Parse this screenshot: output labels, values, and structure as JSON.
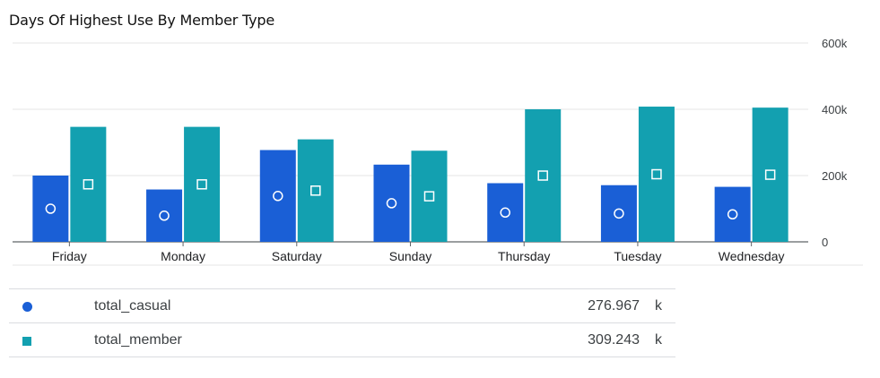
{
  "chart_data": {
    "type": "bar",
    "title": "Days Of Highest Use By Member Type",
    "xlabel": "",
    "ylabel": "",
    "categories": [
      "Friday",
      "Monday",
      "Saturday",
      "Sunday",
      "Thursday",
      "Tuesday",
      "Wednesday"
    ],
    "series": [
      {
        "name": "total_casual",
        "color": "#1a5fd6",
        "marker": "circle",
        "values": [
          200000,
          158000,
          276967,
          233000,
          177000,
          171000,
          166000
        ]
      },
      {
        "name": "total_member",
        "color": "#13a0b0",
        "marker": "square",
        "values": [
          347000,
          347000,
          309243,
          275000,
          400000,
          408000,
          405000
        ]
      }
    ],
    "ylim": [
      0,
      600000
    ],
    "y_ticks": [
      {
        "value": 0,
        "label": "0"
      },
      {
        "value": 200000,
        "label": "200k"
      },
      {
        "value": 400000,
        "label": "400k"
      },
      {
        "value": 600000,
        "label": "600k"
      }
    ],
    "grid": true,
    "y_axis_position": "right",
    "legend_position": "bottom"
  },
  "legend": {
    "rows": [
      {
        "name": "total_casual",
        "value": "276.967",
        "unit": "k",
        "color": "#1a5fd6",
        "marker": "circle"
      },
      {
        "name": "total_member",
        "value": "309.243",
        "unit": "k",
        "color": "#13a0b0",
        "marker": "square"
      }
    ]
  }
}
